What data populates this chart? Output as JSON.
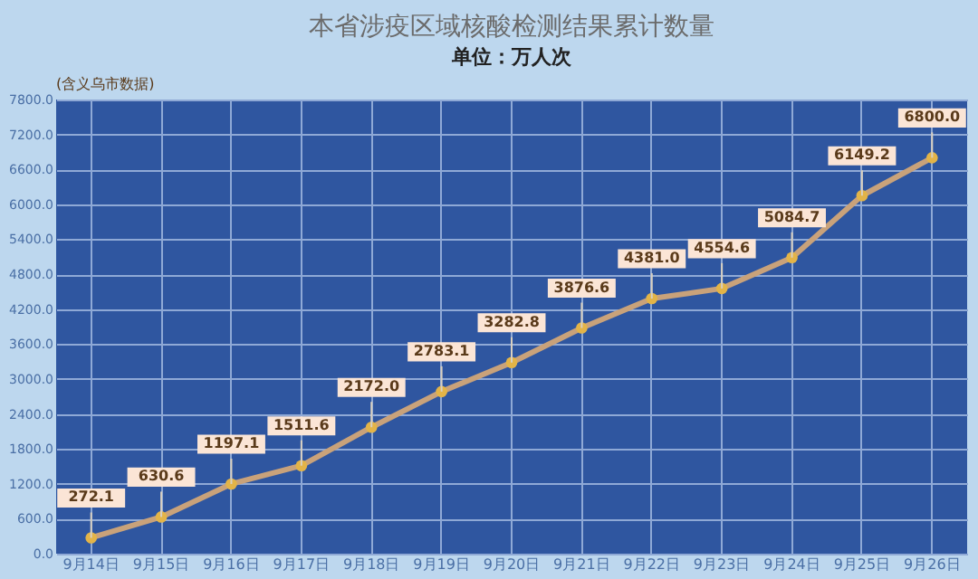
{
  "chart_data": {
    "type": "line",
    "title": "本省涉疫区域核酸检测结果累计数量",
    "subtitle": "单位：万人次",
    "categories": [
      "9月14日",
      "9月15日",
      "9月16日",
      "9月17日",
      "9月18日",
      "9月19日",
      "9月20日",
      "9月21日",
      "9月22日",
      "9月23日",
      "9月24日",
      "9月25日",
      "9月26日"
    ],
    "series": [
      {
        "color": "#c9a27a",
        "values": [
          272.1,
          630.6,
          1197.1,
          1511.6,
          2172.0,
          2783.1,
          3282.8,
          3876.6,
          4381.0,
          4554.6,
          5084.7,
          6149.2,
          6800.0
        ],
        "value_labels": [
          "272.1",
          "630.6",
          "1197.1",
          "1511.6",
          "2172.0",
          "2783.1",
          "3282.8",
          "3876.6",
          "4381.0",
          "4554.6",
          "5084.7",
          "6149.2",
          "6800.0"
        ]
      }
    ],
    "ylim": [
      0,
      7800
    ],
    "yticks": [
      {
        "value": 0,
        "label": "0.0"
      },
      {
        "value": 600,
        "label": "600.0"
      },
      {
        "value": 1200,
        "label": "1200.0"
      },
      {
        "value": 1800,
        "label": "1800.0"
      },
      {
        "value": 2400,
        "label": "2400.0"
      },
      {
        "value": 3000,
        "label": "3000.0"
      },
      {
        "value": 3600,
        "label": "3600.0"
      },
      {
        "value": 4200,
        "label": "4200.0"
      },
      {
        "value": 4800,
        "label": "4800.0"
      },
      {
        "value": 5400,
        "label": "5400.0"
      },
      {
        "value": 6000,
        "label": "6000.0"
      },
      {
        "value": 6600,
        "label": "6600.0"
      },
      {
        "value": 7200,
        "label": "7200.0"
      },
      {
        "value": 7800,
        "label": "7800.0"
      }
    ],
    "annotations": [
      "(含义乌市数据)"
    ],
    "grid": true,
    "marker": "circle",
    "line_style": "solid"
  }
}
